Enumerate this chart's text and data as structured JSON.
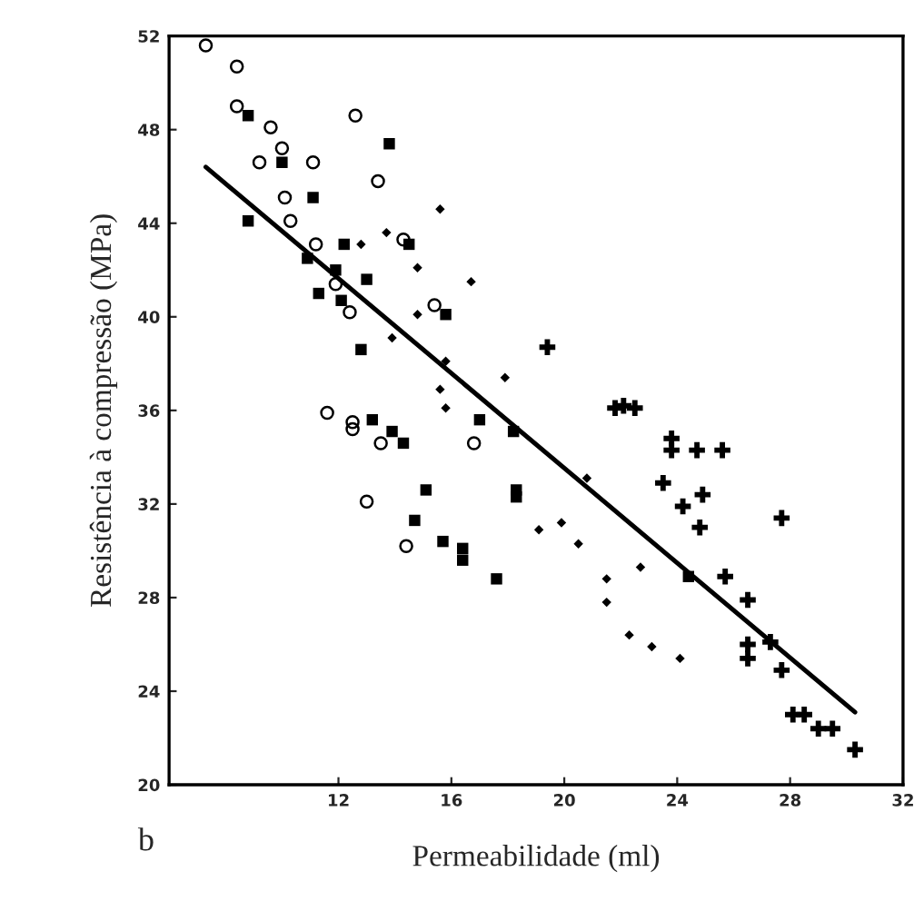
{
  "chart_data": {
    "type": "scatter",
    "xlabel": "Permeabilidade (ml)",
    "ylabel": "Resistência à compressão (MPa)",
    "xlim": [
      6,
      32
    ],
    "ylim": [
      20,
      52
    ],
    "xticks": [
      12,
      16,
      20,
      24,
      28,
      32
    ],
    "yticks": [
      20,
      24,
      28,
      32,
      36,
      40,
      44,
      48,
      52
    ],
    "grid": false,
    "legend": false,
    "annotations": [
      "b"
    ],
    "series": [
      {
        "marker": "circle",
        "color": "#000000",
        "x": [
          7.3,
          8.4,
          8.4,
          9.6,
          10.0,
          9.2,
          11.1,
          12.6,
          13.4,
          10.1,
          10.3,
          11.2,
          14.3,
          15.4,
          12.4,
          11.9,
          11.6,
          12.5,
          12.5,
          13.5,
          13.0,
          14.4,
          16.8
        ],
        "values": [
          51.6,
          50.7,
          49.0,
          48.1,
          47.2,
          46.6,
          46.6,
          48.6,
          45.8,
          45.1,
          44.1,
          43.1,
          43.3,
          40.5,
          40.2,
          41.4,
          35.9,
          35.5,
          35.2,
          34.6,
          32.1,
          30.2,
          34.6
        ]
      },
      {
        "marker": "square",
        "color": "#000000",
        "x": [
          8.8,
          10.0,
          13.8,
          11.1,
          8.8,
          10.9,
          11.9,
          12.2,
          13.0,
          11.3,
          12.1,
          14.5,
          15.8,
          12.8,
          13.2,
          13.9,
          14.3,
          15.1,
          14.7,
          15.7,
          16.4,
          16.4,
          17.6,
          17.0,
          18.2,
          18.3,
          18.3,
          24.4
        ],
        "values": [
          48.6,
          46.6,
          47.4,
          45.1,
          44.1,
          42.5,
          42.0,
          43.1,
          41.6,
          41.0,
          40.7,
          43.1,
          40.1,
          38.6,
          35.6,
          35.1,
          34.6,
          32.6,
          31.3,
          30.4,
          30.1,
          29.6,
          28.8,
          35.6,
          35.1,
          32.6,
          32.3,
          28.9
        ]
      },
      {
        "marker": "diamond",
        "color": "#000000",
        "x": [
          12.8,
          13.7,
          14.8,
          15.6,
          16.7,
          14.8,
          13.9,
          15.8,
          15.6,
          15.8,
          17.9,
          20.8,
          19.1,
          19.9,
          20.5,
          21.5,
          21.5,
          22.7,
          22.3,
          23.1,
          24.1
        ],
        "values": [
          43.1,
          43.6,
          42.1,
          44.6,
          41.5,
          40.1,
          39.1,
          38.1,
          36.9,
          36.1,
          37.4,
          33.1,
          30.9,
          31.2,
          30.3,
          28.8,
          27.8,
          29.3,
          26.4,
          25.9,
          25.4
        ]
      },
      {
        "marker": "cross",
        "color": "#000000",
        "x": [
          19.4,
          21.8,
          22.1,
          22.5,
          23.8,
          23.8,
          24.7,
          25.6,
          23.5,
          24.9,
          24.2,
          24.8,
          27.7,
          25.7,
          26.5,
          26.5,
          26.5,
          27.3,
          27.7,
          28.1,
          28.5,
          29.0,
          29.5,
          30.3
        ],
        "values": [
          38.7,
          36.1,
          36.2,
          36.1,
          34.8,
          34.3,
          34.3,
          34.3,
          32.9,
          32.4,
          31.9,
          31.0,
          31.4,
          28.9,
          27.9,
          26.0,
          25.4,
          26.1,
          24.9,
          23.0,
          23.0,
          22.4,
          22.4,
          21.5
        ]
      },
      {
        "type": "line",
        "marker": "none",
        "color": "#000000",
        "x": [
          7.3,
          30.3
        ],
        "values": [
          46.4,
          23.1
        ]
      }
    ]
  }
}
